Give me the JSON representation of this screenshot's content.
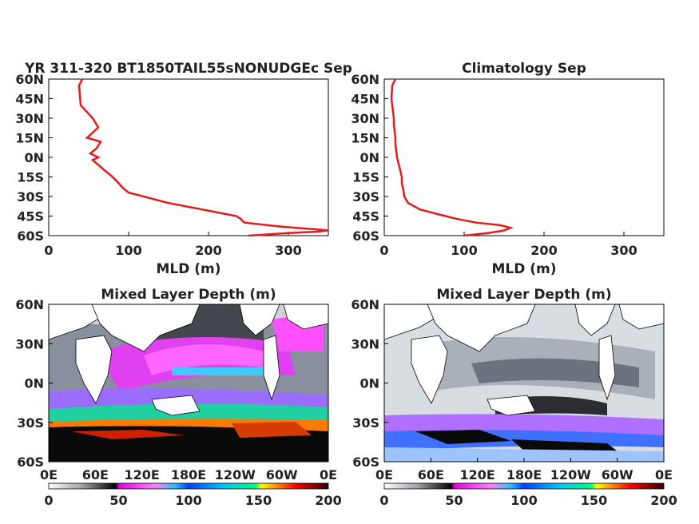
{
  "colors": {
    "line": "#e41a1c",
    "land": "#ffffff",
    "coast": "#000000"
  },
  "chart_data": [
    {
      "type": "line",
      "title": "YR 311-320 BT1850TAIL55sNONUDGEc Sep",
      "xlabel": "MLD (m)",
      "ylabel": "",
      "xlim": [
        0,
        350
      ],
      "ylim": [
        -60,
        60
      ],
      "x_ticks": [
        "0",
        "100",
        "200",
        "300"
      ],
      "y_ticks": [
        "60S",
        "45S",
        "30S",
        "15S",
        "0N",
        "15N",
        "30N",
        "45N",
        "60N"
      ],
      "series": [
        {
          "x": [
            250,
            300,
            335,
            350,
            330,
            290,
            245,
            240,
            235,
            150,
            100,
            92,
            88,
            80,
            70,
            55,
            62,
            52,
            60,
            65,
            48,
            55,
            62,
            55,
            40,
            38,
            42
          ],
          "y": [
            -60,
            -58,
            -57,
            -56,
            -55,
            -53,
            -50,
            -47,
            -45,
            -35,
            -27,
            -23,
            -20,
            -15,
            -10,
            -2,
            0,
            3,
            7,
            12,
            15,
            19,
            23,
            30,
            40,
            55,
            60
          ]
        }
      ]
    },
    {
      "type": "line",
      "title": "Climatology Sep",
      "xlabel": "MLD (m)",
      "ylabel": "",
      "xlim": [
        0,
        350
      ],
      "ylim": [
        -60,
        60
      ],
      "x_ticks": [
        "0",
        "100",
        "200",
        "300"
      ],
      "y_ticks": [
        "60S",
        "45S",
        "30S",
        "15S",
        "0N",
        "15N",
        "30N",
        "45N",
        "60N"
      ],
      "series": [
        {
          "x": [
            100,
            130,
            150,
            158,
            145,
            115,
            90,
            70,
            45,
            30,
            25,
            24,
            22,
            22,
            20,
            18,
            16,
            15,
            14,
            14,
            13,
            12,
            12,
            10,
            9,
            10,
            14
          ],
          "y": [
            -60,
            -58,
            -56,
            -54,
            -52,
            -50,
            -47,
            -44,
            -40,
            -35,
            -30,
            -25,
            -20,
            -15,
            -10,
            -5,
            0,
            5,
            10,
            15,
            20,
            25,
            30,
            40,
            45,
            55,
            60
          ]
        }
      ]
    },
    {
      "type": "heatmap",
      "title": "Mixed Layer Depth (m)",
      "x_ticks": [
        "0E",
        "60E",
        "120E",
        "180E",
        "120W",
        "60W",
        "0E"
      ],
      "y_ticks": [
        "60S",
        "30S",
        "0N",
        "30N",
        "60N"
      ],
      "colorbar_ticks": [
        "0",
        "50",
        "100",
        "150",
        "200"
      ],
      "crange": [
        0,
        200
      ]
    },
    {
      "type": "heatmap",
      "title": "Mixed Layer Depth (m)",
      "x_ticks": [
        "0E",
        "60E",
        "120E",
        "180E",
        "120W",
        "60W",
        "0E"
      ],
      "y_ticks": [
        "60S",
        "30S",
        "0N",
        "30N",
        "60N"
      ],
      "colorbar_ticks": [
        "0",
        "50",
        "100",
        "150",
        "200"
      ],
      "crange": [
        0,
        200
      ]
    }
  ]
}
